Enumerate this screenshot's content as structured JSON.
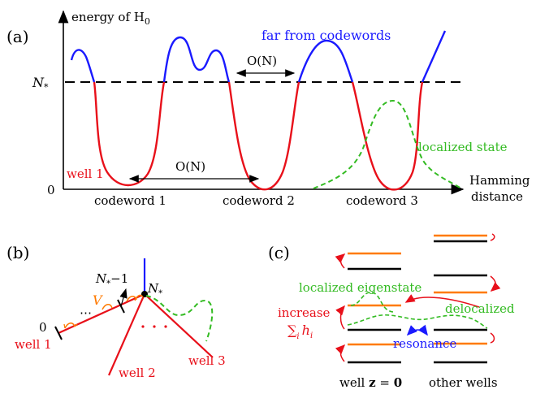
{
  "colors": {
    "black": "#000000",
    "blue": "#1a1aff",
    "red": "#e8101a",
    "green": "#33bb22",
    "orange": "#ff7a00"
  },
  "panel_a": {
    "label": "(a)",
    "y_axis_label": "energy of H",
    "y_axis_label_sub": "0",
    "threshold_label": "N",
    "threshold_label_sub": "*",
    "zero_label": "0",
    "x_axis_label_line1": "Hamming",
    "x_axis_label_line2": "distance",
    "far_label": "far from codewords",
    "on_label": "O(N)",
    "on_label_2": "O(N)",
    "well1_label": "well 1",
    "localized_label": "localized state",
    "codeword_labels": [
      "codeword 1",
      "codeword 2",
      "codeword 3"
    ]
  },
  "panel_b": {
    "label": "(b)",
    "zero_label": "0",
    "v_label": "V",
    "nstar_minus_label": "N",
    "nstar_minus_sub": "*",
    "nstar_minus_suffix": "−1",
    "nstar_label": "N",
    "nstar_sub": "*",
    "dots": "⋯",
    "red_dots": "⋅ ⋅ ⋅",
    "well1_label": "well 1",
    "well2_label": "well 2",
    "well3_label": "well 3"
  },
  "panel_c": {
    "label": "(c)",
    "localized_eigenstate": "localized eigenstate",
    "increase_line1": "increase",
    "increase_line2": "∑",
    "increase_sub": "i",
    "increase_h": "h",
    "increase_h_sub": "i",
    "delocalized": "delocalized",
    "resonance": "resonance",
    "well_z_label": "well ",
    "well_z_bold": "z",
    "well_z_suffix": " = ",
    "well_z_zero": "0",
    "other_wells": "other wells"
  }
}
